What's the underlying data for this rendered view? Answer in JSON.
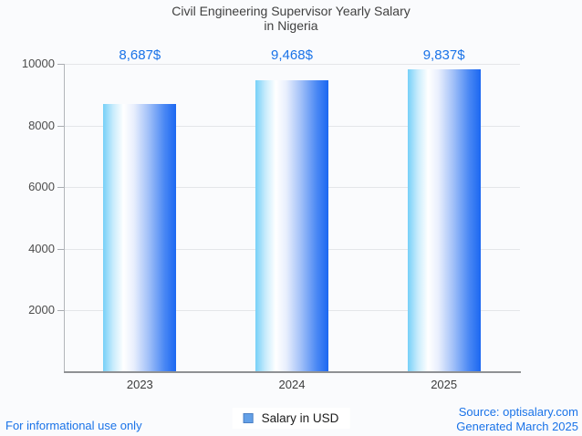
{
  "title": {
    "line1": "Civil Engineering Supervisor Yearly Salary",
    "line2": "in Nigeria"
  },
  "legend": {
    "label": "Salary in USD"
  },
  "footer": {
    "left_note": "For informational use only",
    "source": "Source: optisalary.com",
    "generated": "Generated March 2025"
  },
  "colors": {
    "accent_blue": "#1a73e8",
    "bar_gradient_left": "#76d0f8",
    "bar_gradient_mid": "#ffffff",
    "bar_gradient_right": "#1b67f1",
    "legend_swatch": "#63a0e7",
    "gridline": "#e4e6e9",
    "axis_line": "#8f9194",
    "title_text": "#404040"
  },
  "chart_data": {
    "type": "bar",
    "title": "Civil Engineering Supervisor Yearly Salary in Nigeria",
    "categories": [
      "2023",
      "2024",
      "2025"
    ],
    "series": [
      {
        "name": "Salary in USD",
        "values": [
          8687,
          9468,
          9837
        ]
      }
    ],
    "value_labels": [
      "8,687$",
      "9,468$",
      "9,837$"
    ],
    "xlabel": "",
    "ylabel": "",
    "ylim": [
      0,
      10000
    ],
    "yticks": [
      2000,
      4000,
      6000,
      8000,
      10000
    ],
    "grid": true,
    "legend_position": "bottom"
  }
}
